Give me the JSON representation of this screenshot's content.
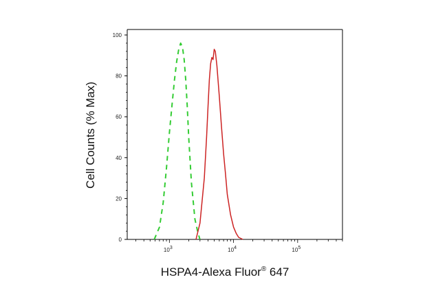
{
  "chart_data": {
    "type": "line",
    "xlabel": {
      "prefix": "HSPA4-Alexa Fluor",
      "mark": "®",
      "suffix": " 647"
    },
    "ylabel": "Cell Counts (% Max)",
    "x_scale": "log",
    "xlim": [
      220,
      500000
    ],
    "ylim": [
      0,
      100
    ],
    "y_ticks": [
      "0",
      "20",
      "40",
      "60",
      "80",
      "100"
    ],
    "x_ticks": [
      {
        "value": 1000,
        "base": "10",
        "exp": "3"
      },
      {
        "value": 10000,
        "base": "10",
        "exp": "4"
      },
      {
        "value": 100000,
        "base": "10",
        "exp": "5"
      }
    ],
    "series": [
      {
        "style": "dashed",
        "color": "#33cc33",
        "x": [
          580,
          700,
          800,
          900,
          1000,
          1100,
          1200,
          1300,
          1400,
          1500,
          1600,
          1700,
          1800,
          1900,
          2000,
          2200,
          2500,
          2800,
          3000
        ],
        "y": [
          0,
          6,
          18,
          35,
          52,
          66,
          78,
          87,
          93,
          96,
          94,
          88,
          78,
          65,
          50,
          28,
          10,
          3,
          0
        ]
      },
      {
        "style": "solid",
        "color": "#cc2222",
        "x": [
          2600,
          3000,
          3500,
          3800,
          4000,
          4200,
          4400,
          4600,
          4800,
          5000,
          5200,
          5500,
          6000,
          6500,
          7000,
          7500,
          8000,
          9000,
          10000,
          11000,
          12000,
          14000
        ],
        "y": [
          0,
          8,
          30,
          50,
          65,
          78,
          86,
          89,
          88,
          93,
          92,
          85,
          70,
          55,
          42,
          32,
          22,
          12,
          6,
          3,
          1,
          0
        ]
      }
    ]
  }
}
